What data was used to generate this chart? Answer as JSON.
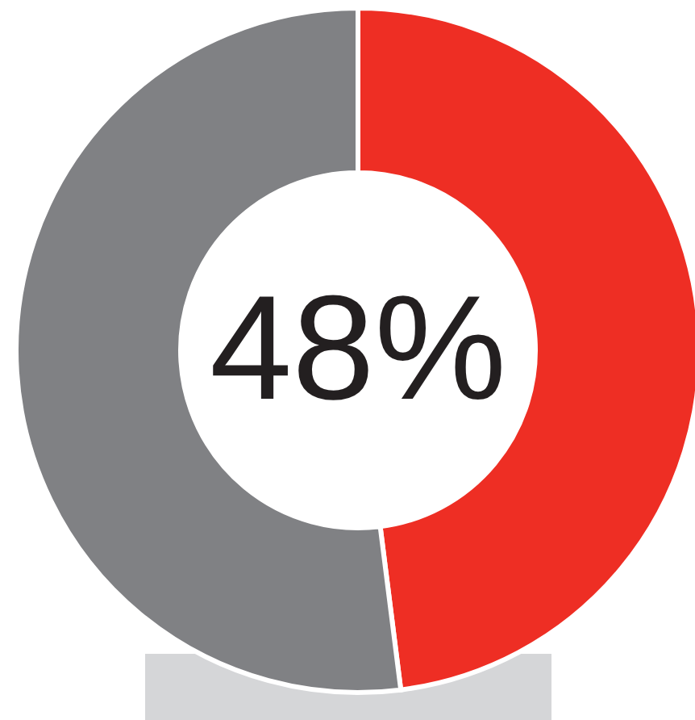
{
  "chart_data": {
    "type": "donut",
    "categories": [
      null,
      null
    ],
    "values": [
      48,
      52
    ],
    "colors": [
      "#ee2e24",
      "#808184"
    ],
    "value_labels": [
      "48%",
      null
    ]
  }
}
